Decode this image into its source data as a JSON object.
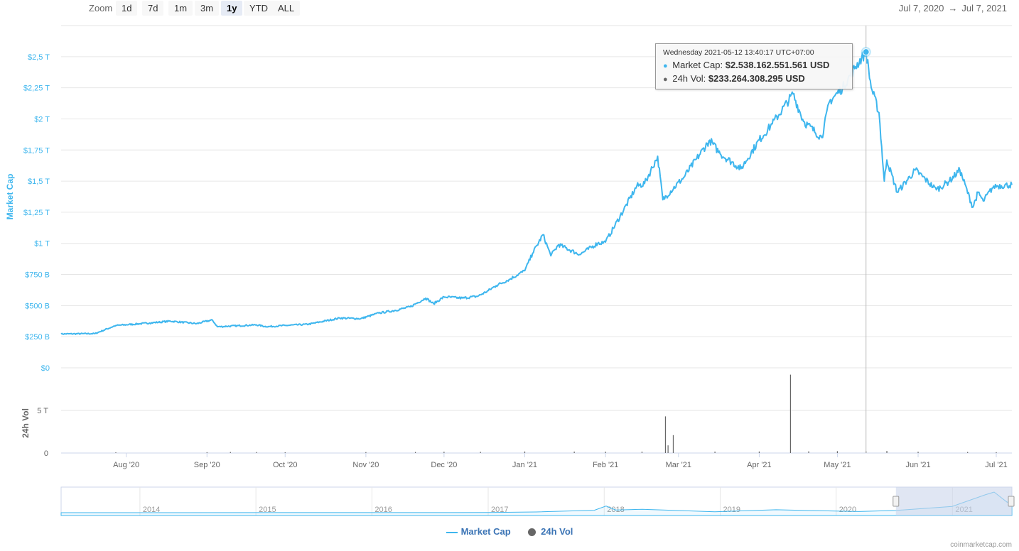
{
  "toolbar": {
    "zoom_label": "Zoom",
    "buttons": [
      "1d",
      "7d",
      "1m",
      "3m",
      "1y",
      "YTD",
      "ALL"
    ],
    "active": "1y",
    "range_from": "Jul 7, 2020",
    "range_arrow": "→",
    "range_to": "Jul 7, 2021"
  },
  "tooltip": {
    "date": "Wednesday 2021-05-12 13:40:17 UTC+07:00",
    "market_cap_label": "Market Cap:",
    "market_cap_value": "$2.538.162.551.561 USD",
    "vol_label": "24h Vol:",
    "vol_value": "$233.264.308.295 USD"
  },
  "legend": {
    "market_cap": "Market Cap",
    "vol": "24h Vol"
  },
  "credit": "coinmarketcap.com",
  "colors": {
    "market_cap": "#3eb6ee",
    "volume": "#666666",
    "navigator_mask": "#ccd6eb"
  },
  "chart_data": [
    {
      "type": "line",
      "title": "",
      "ylabel": "Market Cap",
      "ylim": [
        0,
        2750000000000.0
      ],
      "y_ticks": [
        0,
        250000000000.0,
        500000000000.0,
        750000000000.0,
        1000000000000.0,
        1250000000000.0,
        1500000000000.0,
        1750000000000.0,
        2000000000000.0,
        2250000000000.0,
        2500000000000.0
      ],
      "y_tick_labels": [
        "$0",
        "$250 B",
        "$500 B",
        "$750 B",
        "$1 T",
        "$1,25 T",
        "$1,5 T",
        "$1,75 T",
        "$2 T",
        "$2,25 T",
        "$2,5 T"
      ],
      "x_tick_labels": [
        "Aug '20",
        "Sep '20",
        "Oct '20",
        "Nov '20",
        "Dec '20",
        "Jan '21",
        "Feb '21",
        "Mar '21",
        "Apr '21",
        "May '21",
        "Jun '21",
        "Jul '21"
      ],
      "x_tick_dates": [
        "2020-08-01",
        "2020-09-01",
        "2020-10-01",
        "2020-11-01",
        "2020-12-01",
        "2021-01-01",
        "2021-02-01",
        "2021-03-01",
        "2021-04-01",
        "2021-05-01",
        "2021-06-01",
        "2021-07-01"
      ],
      "xlim": [
        "2020-07-07",
        "2021-07-07"
      ],
      "series": [
        {
          "name": "Market Cap",
          "x": [
            "2020-07-07",
            "2020-07-20",
            "2020-07-28",
            "2020-08-10",
            "2020-08-18",
            "2020-08-28",
            "2020-09-03",
            "2020-09-05",
            "2020-09-20",
            "2020-09-24",
            "2020-10-01",
            "2020-10-10",
            "2020-10-22",
            "2020-10-30",
            "2020-11-06",
            "2020-11-12",
            "2020-11-18",
            "2020-11-24",
            "2020-11-27",
            "2020-12-01",
            "2020-12-08",
            "2020-12-14",
            "2020-12-18",
            "2020-12-21",
            "2020-12-26",
            "2021-01-01",
            "2021-01-04",
            "2021-01-08",
            "2021-01-11",
            "2021-01-14",
            "2021-01-22",
            "2021-01-29",
            "2021-02-01",
            "2021-02-08",
            "2021-02-13",
            "2021-02-16",
            "2021-02-21",
            "2021-02-23",
            "2021-02-26",
            "2021-03-03",
            "2021-03-08",
            "2021-03-13",
            "2021-03-17",
            "2021-03-25",
            "2021-04-01",
            "2021-04-06",
            "2021-04-14",
            "2021-04-18",
            "2021-04-25",
            "2021-04-28",
            "2021-05-03",
            "2021-05-08",
            "2021-05-12",
            "2021-05-14",
            "2021-05-17",
            "2021-05-19",
            "2021-05-20",
            "2021-05-24",
            "2021-05-31",
            "2021-06-08",
            "2021-06-13",
            "2021-06-17",
            "2021-06-22",
            "2021-06-24",
            "2021-06-26",
            "2021-06-30",
            "2021-07-07"
          ],
          "y": [
            272000000000.0,
            275000000000.0,
            340000000000.0,
            360000000000.0,
            375000000000.0,
            355000000000.0,
            385000000000.0,
            330000000000.0,
            345000000000.0,
            330000000000.0,
            340000000000.0,
            350000000000.0,
            400000000000.0,
            395000000000.0,
            440000000000.0,
            460000000000.0,
            490000000000.0,
            560000000000.0,
            515000000000.0,
            570000000000.0,
            560000000000.0,
            575000000000.0,
            620000000000.0,
            660000000000.0,
            710000000000.0,
            780000000000.0,
            920000000000.0,
            1070000000000.0,
            900000000000.0,
            990000000000.0,
            910000000000.0,
            1000000000000.0,
            1010000000000.0,
            1270000000000.0,
            1460000000000.0,
            1480000000000.0,
            1700000000000.0,
            1350000000000.0,
            1420000000000.0,
            1530000000000.0,
            1680000000000.0,
            1830000000000.0,
            1720000000000.0,
            1600000000000.0,
            1830000000000.0,
            1960000000000.0,
            2200000000000.0,
            1980000000000.0,
            1850000000000.0,
            2140000000000.0,
            2250000000000.0,
            2420000000000.0,
            2538000000000.0,
            2250000000000.0,
            2050000000000.0,
            1500000000000.0,
            1670000000000.0,
            1410000000000.0,
            1590000000000.0,
            1430000000000.0,
            1500000000000.0,
            1590000000000.0,
            1290000000000.0,
            1410000000000.0,
            1340000000000.0,
            1460000000000.0,
            1470000000000.0
          ]
        }
      ]
    },
    {
      "type": "bar",
      "title": "",
      "ylabel": "24h Vol",
      "ylim": [
        0,
        10000000000000.0
      ],
      "y_ticks": [
        0,
        5000000000000.0
      ],
      "y_tick_labels": [
        "0",
        "5 T"
      ],
      "series": [
        {
          "name": "24h Vol",
          "x": [
            "2020-07-28",
            "2020-09-01",
            "2020-09-10",
            "2020-09-20",
            "2020-10-01",
            "2020-11-01",
            "2020-11-20",
            "2020-12-01",
            "2020-12-15",
            "2021-01-01",
            "2021-01-20",
            "2021-02-01",
            "2021-02-15",
            "2021-02-24",
            "2021-02-25",
            "2021-02-27",
            "2021-03-15",
            "2021-04-01",
            "2021-04-13",
            "2021-04-20",
            "2021-05-01",
            "2021-05-12",
            "2021-05-20",
            "2021-06-01",
            "2021-06-20",
            "2021-07-01"
          ],
          "values": [
            80000000000.0,
            100000000000.0,
            120000000000.0,
            110000000000.0,
            90000000000.0,
            110000000000.0,
            120000000000.0,
            150000000000.0,
            140000000000.0,
            180000000000.0,
            170000000000.0,
            160000000000.0,
            170000000000.0,
            4300000000000.0,
            900000000000.0,
            2100000000000.0,
            170000000000.0,
            180000000000.0,
            9200000000000.0,
            200000000000.0,
            220000000000.0,
            233000000000.0,
            250000000000.0,
            150000000000.0,
            120000000000.0,
            100000000000.0
          ]
        }
      ]
    },
    {
      "type": "area",
      "title": "",
      "x_tick_labels": [
        "2014",
        "2015",
        "2016",
        "2017",
        "2018",
        "2019",
        "2020",
        "2021"
      ],
      "xlim": [
        "2013-04-28",
        "2021-07-07"
      ],
      "selected_range": [
        "2020-07-07",
        "2021-07-07"
      ],
      "series": [
        {
          "name": "Market Cap",
          "x": [
            "2013-04-28",
            "2016-12-31",
            "2017-06-01",
            "2017-12-01",
            "2018-01-07",
            "2018-02-06",
            "2018-05-01",
            "2018-12-15",
            "2019-06-26",
            "2019-12-31",
            "2020-03-12",
            "2020-07-07",
            "2020-12-31",
            "2021-04-14",
            "2021-05-12",
            "2021-06-22",
            "2021-07-07"
          ],
          "y": [
            1500000000.0,
            18000000000.0,
            90000000000.0,
            300000000000.0,
            813000000000.0,
            330000000000.0,
            420000000000.0,
            110000000000.0,
            360000000000.0,
            190000000000.0,
            140000000000.0,
            272000000000.0,
            770000000000.0,
            2200000000000.0,
            2538000000000.0,
            1290000000000.0,
            1470000000000.0
          ]
        }
      ]
    }
  ]
}
